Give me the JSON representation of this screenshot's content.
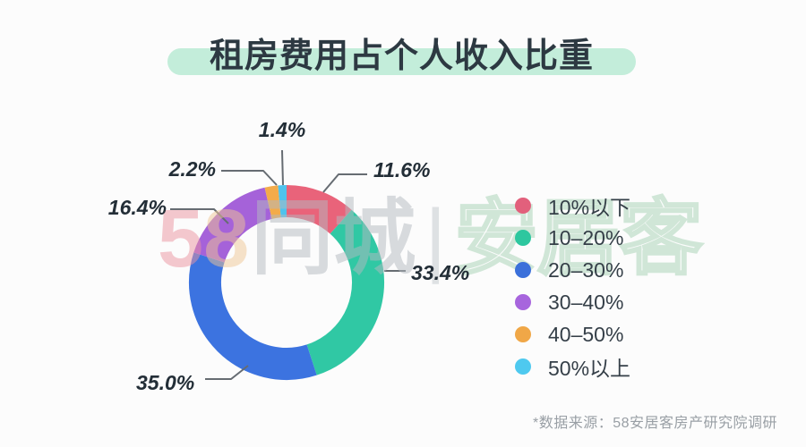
{
  "title": {
    "text": "租房费用占个人收入比重"
  },
  "chart_data": {
    "type": "pie",
    "donut": true,
    "title": "租房费用占个人收入比重",
    "start_angle_deg": 0,
    "direction": "clockwise",
    "segments": [
      {
        "label": "10%以下",
        "value": 11.6,
        "color": "#e9637a"
      },
      {
        "label": "10-20%",
        "value": 33.4,
        "color": "#30c8a4"
      },
      {
        "label": "20-30%",
        "value": 35.0,
        "color": "#3c73e0"
      },
      {
        "label": "30-40%",
        "value": 16.4,
        "color": "#a562d9"
      },
      {
        "label": "40-50%",
        "value": 2.2,
        "color": "#f3ab4a"
      },
      {
        "label": "50%以上",
        "value": 1.4,
        "color": "#4fc3ed"
      }
    ],
    "callouts": {
      "v1_4": "1.4%",
      "v2_2": "2.2%",
      "v16_4": "16.4%",
      "v11_6": "11.6%",
      "v33_4": "33.4%",
      "v35_0": "35.0%"
    },
    "legend_position": "right"
  },
  "legend": {
    "items": [
      {
        "label": "10%以下",
        "color": "#e2607c"
      },
      {
        "label": "10–20%",
        "color": "#2dc79f"
      },
      {
        "label": "20–30%",
        "color": "#3b70da"
      },
      {
        "label": "30–40%",
        "color": "#a765dd"
      },
      {
        "label": "40–50%",
        "color": "#f0a747"
      },
      {
        "label": "50%以上",
        "color": "#4ec9ef"
      }
    ]
  },
  "watermark": {
    "part_5": "5",
    "part_8": "8",
    "part_tongcheng": "同城",
    "divider": "|",
    "part_anjuke": "安居客"
  },
  "source": {
    "text": "*数据来源：58安居客房产研究院调研"
  },
  "colors": {
    "title_band": "#c3edda",
    "title_text": "#2d3942",
    "leader_line": "#666c72",
    "background": "#fcfcfc"
  }
}
